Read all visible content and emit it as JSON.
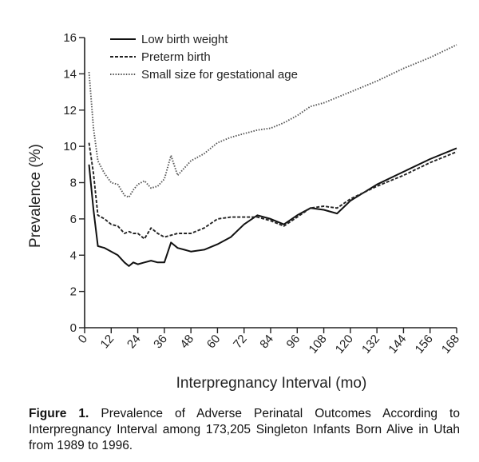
{
  "chart_data": {
    "type": "line",
    "xlabel": "Interpregnancy Interval (mo)",
    "ylabel": "Prevalence (%)",
    "xlim": [
      0,
      168
    ],
    "ylim": [
      0,
      16
    ],
    "xticks": [
      0,
      12,
      24,
      36,
      48,
      60,
      72,
      84,
      96,
      108,
      120,
      132,
      144,
      156,
      168
    ],
    "yticks": [
      0,
      2,
      4,
      6,
      8,
      10,
      12,
      14,
      16
    ],
    "legend_position": "top-left",
    "series": [
      {
        "name": "Low birth weight",
        "style": "solid",
        "x": [
          2,
          4,
          6,
          9,
          12,
          15,
          18,
          20,
          22,
          24,
          27,
          30,
          33,
          36,
          39,
          42,
          45,
          48,
          54,
          60,
          66,
          72,
          78,
          84,
          90,
          96,
          102,
          108,
          114,
          120,
          132,
          144,
          156,
          168
        ],
        "y": [
          9.0,
          6.5,
          4.5,
          4.4,
          4.2,
          4.0,
          3.6,
          3.4,
          3.6,
          3.5,
          3.6,
          3.7,
          3.6,
          3.6,
          4.7,
          4.4,
          4.3,
          4.2,
          4.3,
          4.6,
          5.0,
          5.7,
          6.2,
          6.0,
          5.7,
          6.2,
          6.6,
          6.5,
          6.3,
          7.0,
          7.9,
          8.6,
          9.3,
          9.9
        ]
      },
      {
        "name": "Preterm birth",
        "style": "dashed",
        "x": [
          2,
          4,
          6,
          9,
          12,
          15,
          18,
          20,
          22,
          24,
          27,
          30,
          33,
          36,
          39,
          42,
          45,
          48,
          54,
          60,
          66,
          72,
          78,
          84,
          90,
          96,
          102,
          108,
          114,
          120,
          132,
          144,
          156,
          168
        ],
        "y": [
          10.2,
          8.5,
          6.2,
          6.0,
          5.7,
          5.6,
          5.2,
          5.3,
          5.2,
          5.2,
          4.9,
          5.5,
          5.2,
          5.0,
          5.1,
          5.2,
          5.2,
          5.2,
          5.5,
          6.0,
          6.1,
          6.1,
          6.1,
          5.9,
          5.6,
          6.1,
          6.6,
          6.7,
          6.6,
          7.1,
          7.8,
          8.4,
          9.1,
          9.7
        ]
      },
      {
        "name": "Small size for gestational age",
        "style": "dotted",
        "x": [
          2,
          4,
          6,
          9,
          12,
          15,
          18,
          20,
          22,
          24,
          27,
          30,
          33,
          36,
          39,
          42,
          45,
          48,
          54,
          60,
          66,
          72,
          78,
          84,
          90,
          96,
          102,
          108,
          114,
          120,
          132,
          144,
          156,
          168
        ],
        "y": [
          14.1,
          11.0,
          9.2,
          8.5,
          8.0,
          7.9,
          7.3,
          7.2,
          7.6,
          7.9,
          8.1,
          7.7,
          7.8,
          8.2,
          9.5,
          8.4,
          8.8,
          9.2,
          9.6,
          10.2,
          10.5,
          10.7,
          10.9,
          11.0,
          11.3,
          11.7,
          12.2,
          12.4,
          12.7,
          13.0,
          13.6,
          14.3,
          14.9,
          15.6
        ]
      }
    ]
  },
  "caption": {
    "label": "Figure 1.",
    "text": " Prevalence of Adverse Perinatal Outcomes According to Interpregnancy Interval among 173,205 Singleton Infants Born Alive in Utah from 1989 to 1996."
  }
}
